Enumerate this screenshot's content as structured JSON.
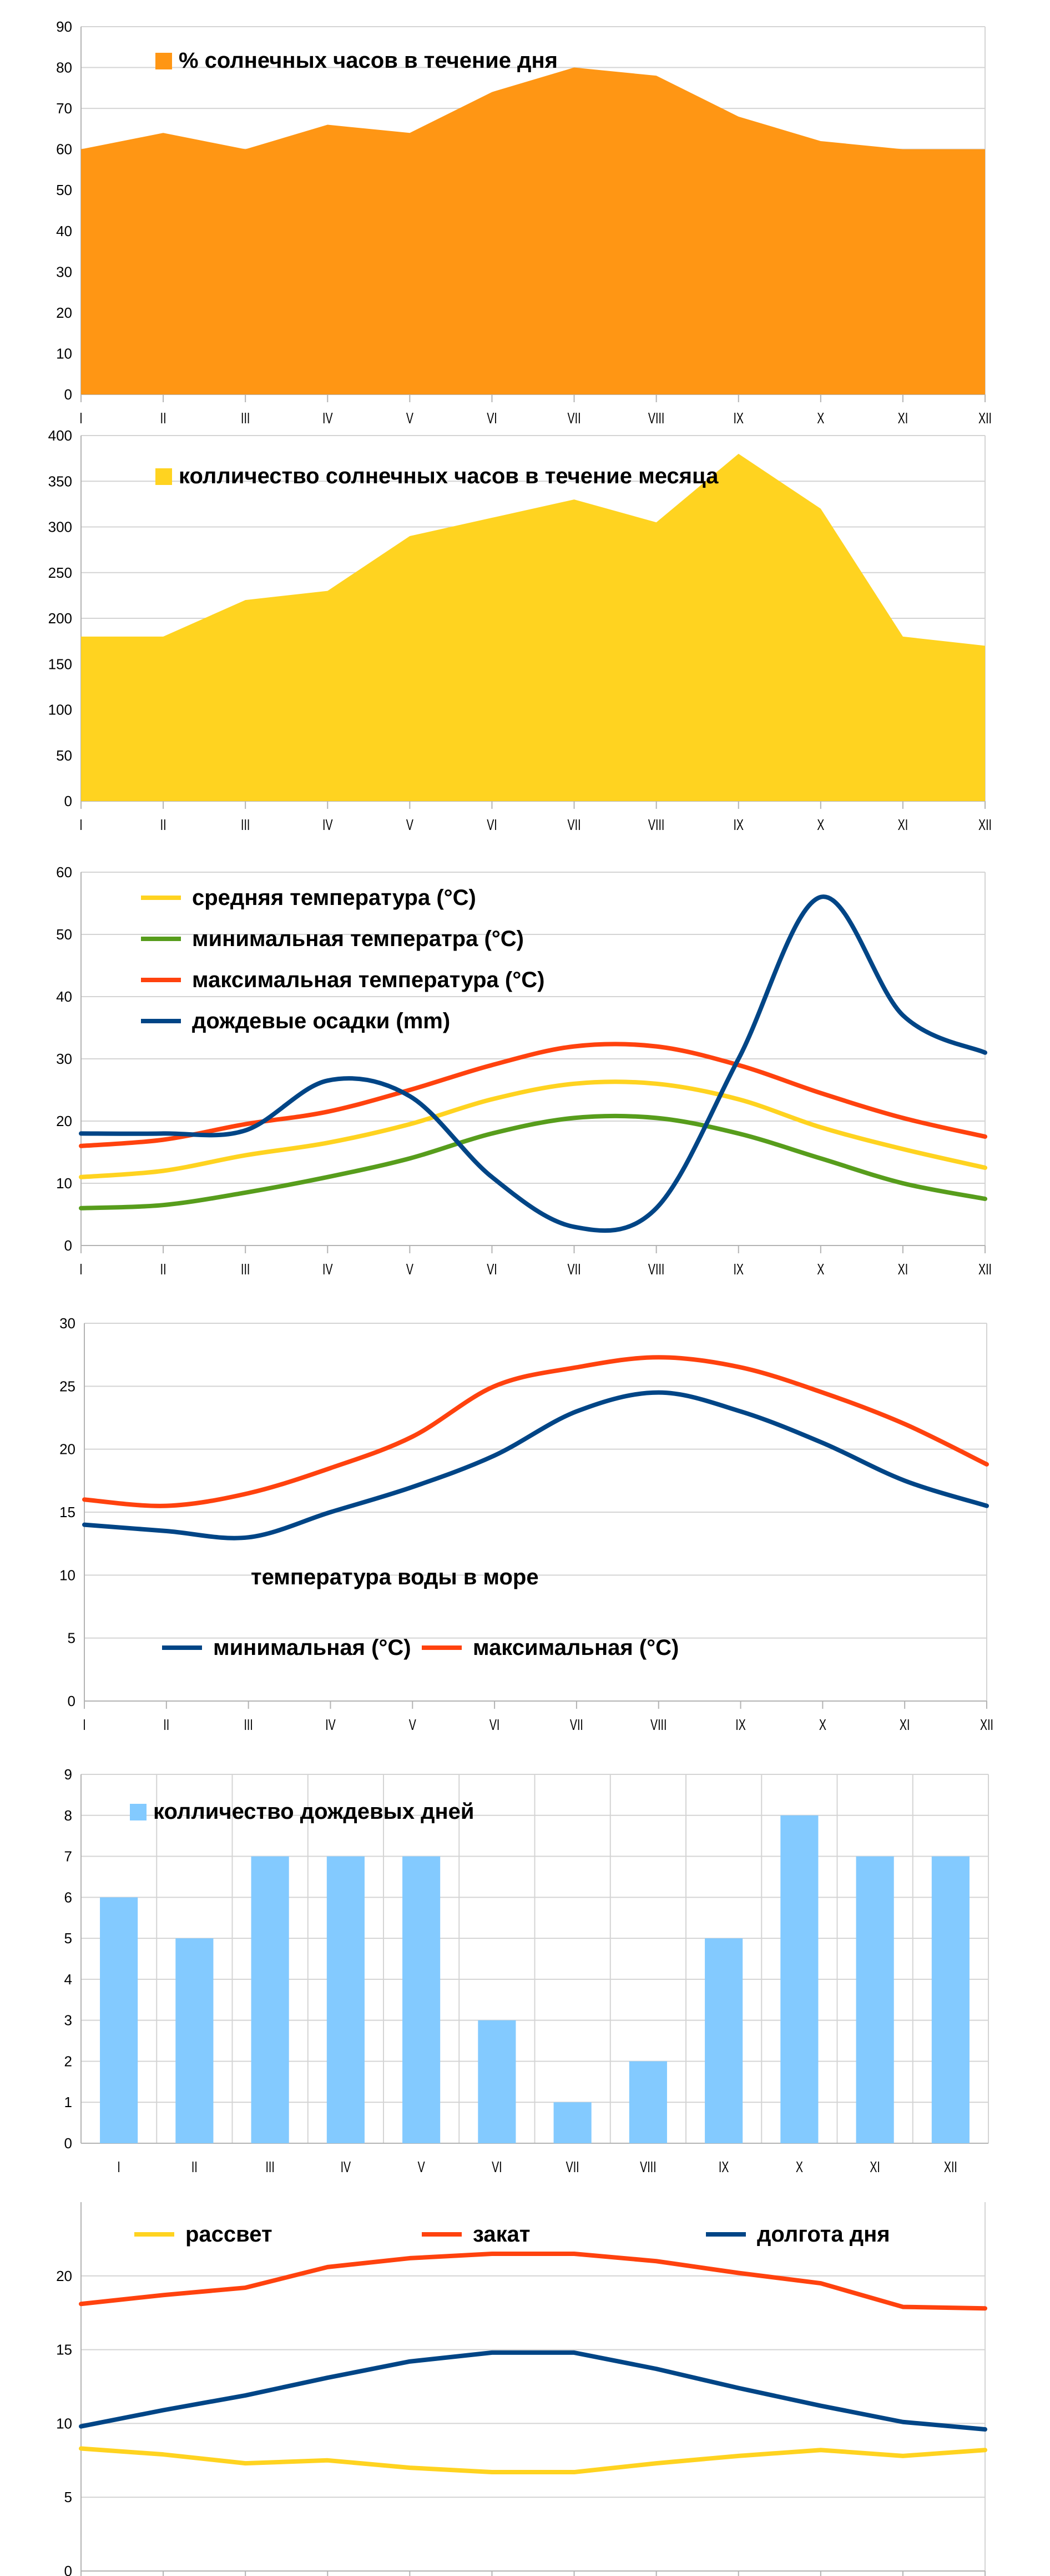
{
  "months": [
    "I",
    "II",
    "III",
    "IV",
    "V",
    "VI",
    "VII",
    "VIII",
    "IX",
    "X",
    "XI",
    "XII"
  ],
  "chart_data": [
    {
      "type": "area",
      "ylim": [
        0,
        90
      ],
      "yticks": [
        0,
        10,
        20,
        30,
        40,
        50,
        60,
        70,
        80,
        90
      ],
      "grid": true,
      "legend_position": "top-left",
      "series": [
        {
          "name": "% солнечных часов в течение дня",
          "color": "#FF9614",
          "values": [
            60,
            64,
            60,
            66,
            64,
            74,
            80,
            78,
            68,
            62,
            60,
            60
          ]
        }
      ]
    },
    {
      "type": "area",
      "ylim": [
        0,
        400
      ],
      "yticks": [
        0,
        50,
        100,
        150,
        200,
        250,
        300,
        350,
        400
      ],
      "grid": true,
      "legend_position": "top-left",
      "series": [
        {
          "name": "колличество солнечных часов в течение месяца",
          "color": "#FFD320",
          "values": [
            180,
            180,
            220,
            230,
            290,
            310,
            330,
            305,
            380,
            320,
            180,
            170
          ]
        }
      ]
    },
    {
      "type": "line",
      "ylim": [
        0,
        60
      ],
      "yticks": [
        0,
        10,
        20,
        30,
        40,
        50,
        60
      ],
      "grid": true,
      "legend_position": "top-left",
      "series": [
        {
          "name": "средняя температура (°C)",
          "color": "#FFD320",
          "values": [
            11,
            12,
            14.5,
            16.5,
            19.5,
            23.5,
            26,
            26,
            23.5,
            19,
            15.5,
            12.5
          ]
        },
        {
          "name": "минимальная температра (°C)",
          "color": "#579D1C",
          "values": [
            6,
            6.5,
            8.5,
            11,
            14,
            18,
            20.5,
            20.5,
            18,
            14,
            10,
            7.5
          ]
        },
        {
          "name": "максимальная температура (°C)",
          "color": "#FF420E",
          "values": [
            16,
            17,
            19.5,
            21.5,
            25,
            29,
            32,
            32,
            29,
            24.5,
            20.5,
            17.5
          ]
        },
        {
          "name": "дождевые осадки (mm)",
          "color": "#004586",
          "values": [
            18,
            18,
            18.5,
            26.5,
            24,
            11,
            3,
            6,
            30,
            56,
            37,
            31
          ]
        }
      ]
    },
    {
      "type": "line",
      "title": "температура воды в море",
      "ylim": [
        0,
        30
      ],
      "yticks": [
        0,
        5,
        10,
        15,
        20,
        25,
        30
      ],
      "grid": true,
      "legend_position": "bottom-left",
      "series": [
        {
          "name": "минимальная (°C)",
          "color": "#004586",
          "values": [
            14,
            13.5,
            13,
            15,
            17,
            19.5,
            23,
            24.5,
            23,
            20.5,
            17.5,
            15.5
          ]
        },
        {
          "name": "максимальная (°C)",
          "color": "#FF420E",
          "values": [
            16,
            15.5,
            16.5,
            18.5,
            21,
            25,
            26.5,
            27.3,
            26.5,
            24.5,
            22,
            18.8
          ]
        }
      ]
    },
    {
      "type": "bar",
      "ylim": [
        0,
        9
      ],
      "yticks": [
        0,
        1,
        2,
        3,
        4,
        5,
        6,
        7,
        8,
        9
      ],
      "grid": true,
      "legend_position": "top-left",
      "series": [
        {
          "name": "колличество дождевых дней",
          "color": "#83CAFF",
          "values": [
            6,
            5,
            7,
            7,
            7,
            3,
            1,
            2,
            5,
            8,
            7,
            7
          ]
        }
      ]
    },
    {
      "type": "line",
      "ylim": [
        0,
        25
      ],
      "yticks": [
        0,
        5,
        10,
        15,
        20
      ],
      "grid": true,
      "legend_position": "top",
      "series": [
        {
          "name": "рассвет",
          "color": "#FFD320",
          "values": [
            8.3,
            7.9,
            7.3,
            7.5,
            7,
            6.7,
            6.7,
            7.3,
            7.8,
            8.2,
            7.8,
            8.2
          ]
        },
        {
          "name": "закат",
          "color": "#FF420E",
          "values": [
            18.1,
            18.7,
            19.2,
            20.6,
            21.2,
            21.5,
            21.5,
            21,
            20.2,
            19.5,
            17.9,
            17.8
          ]
        },
        {
          "name": "долгота дня",
          "color": "#004586",
          "values": [
            9.8,
            10.9,
            11.9,
            13.1,
            14.2,
            14.8,
            14.8,
            13.7,
            12.4,
            11.2,
            10.1,
            9.6
          ]
        }
      ]
    }
  ]
}
